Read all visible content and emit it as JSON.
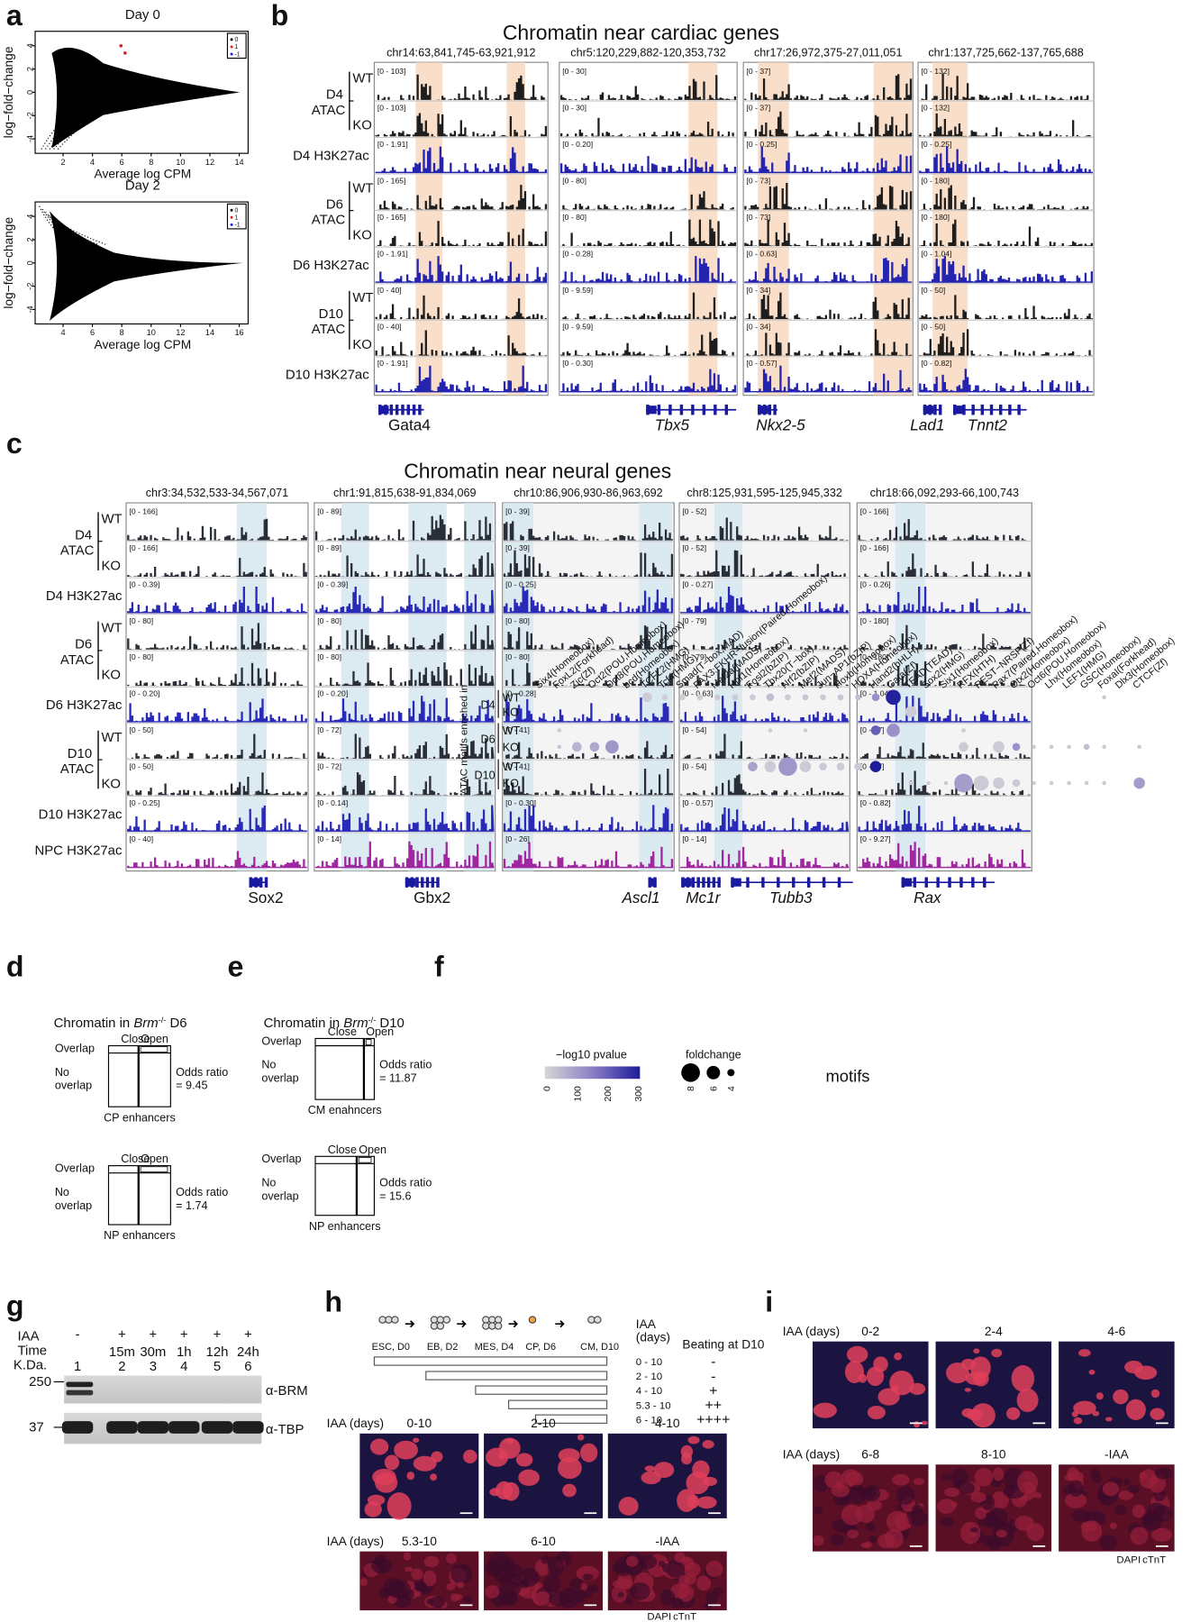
{
  "panel_labels": [
    "a",
    "b",
    "c",
    "d",
    "e",
    "f",
    "g",
    "h",
    "i"
  ],
  "a": {
    "plots": [
      {
        "title": "Day 0",
        "xlabel": "Average log CPM",
        "ylabel": "log−fold−change",
        "xticks": [
          "2",
          "4",
          "6",
          "8",
          "10",
          "12",
          "14"
        ],
        "yticks": [
          "-4",
          "-2",
          "0",
          "2",
          "4"
        ],
        "legend": [
          "0",
          "1",
          "-1"
        ]
      },
      {
        "title": "Day 2",
        "xlabel": "Average log CPM",
        "ylabel": "log−fold−change",
        "xticks": [
          "4",
          "6",
          "8",
          "10",
          "12",
          "14",
          "16"
        ],
        "yticks": [
          "-4",
          "-2",
          "0",
          "2",
          "4"
        ],
        "legend": [
          "0",
          "1",
          "-1"
        ]
      }
    ]
  },
  "b": {
    "title": "Chromatin near cardiac genes",
    "regions": [
      {
        "coord": "chr14:63,841,745-63,921,912",
        "ranges": [
          "[0 - 103]",
          "[0 - 103]",
          "[0 - 1.91]",
          "[0 - 165]",
          "[0 - 165]",
          "[0 - 1.91]",
          "[0 - 40]",
          "[0 - 40]",
          "[0 - 1.91]"
        ]
      },
      {
        "coord": "chr5:120,229,882-120,353,732",
        "ranges": [
          "[0 - 30]",
          "[0 - 30]",
          "[0 - 0.20]",
          "[0 - 80]",
          "[0 - 80]",
          "[0 - 0.28]",
          "[0 - 9.59]",
          "[0 - 9.59]",
          "[0 - 0.30]"
        ]
      },
      {
        "coord": "chr17:26,972,375-27,011,051",
        "ranges": [
          "[0 - 37]",
          "[0 - 37]",
          "[0 - 0.25]",
          "[0 - 73]",
          "[0 - 73]",
          "[0 - 0.63]",
          "[0 - 34]",
          "[0 - 34]",
          "[0 - 0.57]"
        ]
      },
      {
        "coord": "chr1:137,725,662-137,765,688",
        "ranges": [
          "[0 - 132]",
          "[0 - 132]",
          "[0 - 0.25]",
          "[0 - 180]",
          "[0 - 180]",
          "[0 - 1.04]",
          "[0 - 50]",
          "[0 - 50]",
          "[0 - 0.82]"
        ]
      }
    ],
    "rows": [
      {
        "sample": "D4",
        "assay": "ATAC",
        "wt": "WT",
        "ko": "KO",
        "h3": "D4 H3K27ac"
      },
      {
        "sample": "D6",
        "assay": "ATAC",
        "wt": "WT",
        "ko": "KO",
        "h3": "D6 H3K27ac"
      },
      {
        "sample": "D10",
        "assay": "ATAC",
        "wt": "WT",
        "ko": "KO",
        "h3": "D10 H3K27ac"
      }
    ],
    "genes": [
      "Gata4",
      "Tbx5",
      "Nkx2-5",
      "Lad1",
      "Tnnt2"
    ]
  },
  "c": {
    "title": "Chromatin near neural genes",
    "regions": [
      {
        "coord": "chr3:34,532,533-34,567,071",
        "ranges": [
          "[0 - 166]",
          "[0 - 166]",
          "[0 - 0.39]",
          "[0 - 80]",
          "[0 - 80]",
          "[0 - 0.20]",
          "[0 - 50]",
          "[0 - 50]",
          "[0 - 0.25]",
          "[0 - 40]"
        ]
      },
      {
        "coord": "chr1:91,815,638-91,834,069",
        "ranges": [
          "[0 - 89]",
          "[0 - 89]",
          "[0 - 0.39]",
          "[0 - 80]",
          "[0 - 80]",
          "[0 - 0.20]",
          "[0 - 72]",
          "[0 - 72]",
          "[0 - 0.14]",
          "[0 - 14]"
        ]
      },
      {
        "coord": "chr10:86,906,930-86,963,692",
        "ranges": [
          "[0 - 39]",
          "[0 - 39]",
          "[0 - 0.25]",
          "[0 - 80]",
          "[0 - 80]",
          "[0 - 0.28]",
          "[0 - 41]",
          "[0 - 41]",
          "[0 - 0.30]",
          "[0 - 26]"
        ]
      },
      {
        "coord": "chr8:125,931,595-125,945,332",
        "ranges": [
          "[0 - 52]",
          "[0 - 52]",
          "[0 - 0.27]",
          "[0 - 79]",
          "[0 - 79]",
          "[0 - 0.63]",
          "[0 - 54]",
          "[0 - 54]",
          "[0 - 0.57]",
          "[0 - 14]"
        ]
      },
      {
        "coord": "chr18:66,092,293-66,100,743",
        "ranges": [
          "[0 - 166]",
          "[0 - 166]",
          "[0 - 0.26]",
          "[0 - 180]",
          "[0 - 180]",
          "[0 - 1.04]",
          "[0 - 87]",
          "[0 - 87]",
          "[0 - 0.82]",
          "[0 - 9.27]"
        ]
      }
    ],
    "rows": [
      {
        "sample": "D4",
        "assay": "ATAC",
        "wt": "WT",
        "ko": "KO",
        "h3": "D4 H3K27ac"
      },
      {
        "sample": "D6",
        "assay": "ATAC",
        "wt": "WT",
        "ko": "KO",
        "h3": "D6 H3K27ac"
      },
      {
        "sample": "D10",
        "assay": "ATAC",
        "wt": "WT",
        "ko": "KO",
        "h3": "D10 H3K27ac"
      }
    ],
    "npc": "NPC H3K27ac",
    "genes": [
      "Sox2",
      "Gbx2",
      "Ascl1",
      "Mc1r",
      "Tubb3",
      "Rax"
    ]
  },
  "d": {
    "title": [
      "Chromatin in ",
      "Brm",
      "-/-",
      " D6"
    ],
    "charts": [
      {
        "close": "Close",
        "open": "Open",
        "overlap": "Overlap",
        "no_overlap": [
          "No",
          "overlap"
        ],
        "odds_label": "Odds ratio",
        "odds_value": "= 9.45",
        "set": "CP enhancers"
      },
      {
        "close": "Close",
        "open": "Open",
        "overlap": "Overlap",
        "no_overlap": [
          "No",
          "overlap"
        ],
        "odds_label": "Odds ratio",
        "odds_value": "= 1.74",
        "set": "NP enhancers"
      }
    ]
  },
  "e": {
    "title": [
      "Chromatin in ",
      "Brm",
      "-/-",
      " D10"
    ],
    "charts": [
      {
        "close": "Close",
        "open": "Open",
        "overlap": "Overlap",
        "no_overlap": [
          "No",
          "overlap"
        ],
        "odds_label": "Odds ratio",
        "odds_value": "= 11.87",
        "set": "CM enahncers"
      },
      {
        "close": "Close",
        "open": "Open",
        "overlap": "Overlap",
        "no_overlap": [
          "No",
          "overlap"
        ],
        "odds_label": "Odds ratio",
        "odds_value": "= 15.6",
        "set": "NP enhancers"
      }
    ]
  },
  "f": {
    "ylabel": "ATAC motifs enriched in",
    "rows": [
      {
        "day": "D4",
        "wt": "WT",
        "ko": "KO"
      },
      {
        "day": "D6",
        "wt": "WT",
        "ko": "KO"
      },
      {
        "day": "D10",
        "wt": "WT",
        "ko": "KO"
      }
    ],
    "motifs": [
      "Six4(Homeobox)",
      "FoxL2(Forkhead)",
      "Zic(Zf)",
      "Oct2(POU,Homeobox)",
      "Oct8(POU,Homeobox)",
      "bcd(Homeobox)",
      "TCFL2(HMG)",
      "Tcf4(HMG)",
      "Smad(T−box,MAD)",
      "PAX3:FKHR−fusion(Paired,Homeobox)",
      "Mef2a(MADS)",
      "Hnf1(Homeobox)",
      "Fosl2(bZIP)",
      "Tbx20(T−box)",
      "Nrf2(bZIP)",
      "Mef2(MADS)",
      "Jun−AP1(bZIP)",
      "Hoxb(Homeobox)",
      "HOXA(Homeobox)",
      "Hand2(bHLH)",
      "Gata(Zf)",
      "TEAD(TEAD)",
      "Sox2(HMG)",
      "Six1(Homeobox)",
      "RFX(HTH)",
      "REST−NRSF(Zf)",
      "Pax7(Paired,Homeobox)",
      "Otx2(Homeobox)",
      "Oct6(POU,Homeobox)",
      "Lhx(Homeobox)",
      "LEF1(HMG)",
      "GSC(Homeobox)",
      "FoxaI(Forkhead)",
      "Dlx3(Homeobox)",
      "CTCF(Zf)"
    ],
    "dots": [
      {
        "row": 0,
        "motif": 6,
        "pvalue": 20,
        "foldchange": 5.5
      },
      {
        "row": 0,
        "motif": 7,
        "pvalue": 15,
        "foldchange": 4.5
      },
      {
        "row": 0,
        "motif": 8,
        "pvalue": 15,
        "foldchange": 4.5
      },
      {
        "row": 0,
        "motif": 9,
        "pvalue": 15,
        "foldchange": 4.5
      },
      {
        "row": 0,
        "motif": 10,
        "pvalue": 20,
        "foldchange": 4.5
      },
      {
        "row": 0,
        "motif": 11,
        "pvalue": 20,
        "foldchange": 4.5
      },
      {
        "row": 0,
        "motif": 12,
        "pvalue": 20,
        "foldchange": 4.5
      },
      {
        "row": 0,
        "motif": 13,
        "pvalue": 40,
        "foldchange": 5
      },
      {
        "row": 0,
        "motif": 14,
        "pvalue": 20,
        "foldchange": 4.5
      },
      {
        "row": 0,
        "motif": 15,
        "pvalue": 30,
        "foldchange": 4.5
      },
      {
        "row": 0,
        "motif": 16,
        "pvalue": 20,
        "foldchange": 4.5
      },
      {
        "row": 0,
        "motif": 17,
        "pvalue": 30,
        "foldchange": 4.5
      },
      {
        "row": 0,
        "motif": 18,
        "pvalue": 40,
        "foldchange": 4.5
      },
      {
        "row": 0,
        "motif": 19,
        "pvalue": 120,
        "foldchange": 5
      },
      {
        "row": 0,
        "motif": 20,
        "pvalue": 290,
        "foldchange": 7
      },
      {
        "row": 0,
        "motif": 32,
        "pvalue": 20,
        "foldchange": 4
      },
      {
        "row": 1,
        "motif": 21,
        "pvalue": 20,
        "foldchange": 6
      },
      {
        "row": 2,
        "motif": 1,
        "pvalue": 20,
        "foldchange": 4
      },
      {
        "row": 2,
        "motif": 13,
        "pvalue": 20,
        "foldchange": 4
      },
      {
        "row": 2,
        "motif": 15,
        "pvalue": 20,
        "foldchange": 4
      },
      {
        "row": 2,
        "motif": 19,
        "pvalue": 200,
        "foldchange": 5.5
      },
      {
        "row": 2,
        "motif": 20,
        "pvalue": 120,
        "foldchange": 6.5
      },
      {
        "row": 2,
        "motif": 24,
        "pvalue": 20,
        "foldchange": 4
      },
      {
        "row": 3,
        "motif": 1,
        "pvalue": 30,
        "foldchange": 4
      },
      {
        "row": 3,
        "motif": 2,
        "pvalue": 60,
        "foldchange": 5.5
      },
      {
        "row": 3,
        "motif": 3,
        "pvalue": 80,
        "foldchange": 5.5
      },
      {
        "row": 3,
        "motif": 4,
        "pvalue": 110,
        "foldchange": 6.5
      },
      {
        "row": 3,
        "motif": 24,
        "pvalue": 20,
        "foldchange": 5.5
      },
      {
        "row": 3,
        "motif": 26,
        "pvalue": 20,
        "foldchange": 6
      },
      {
        "row": 3,
        "motif": 27,
        "pvalue": 120,
        "foldchange": 5
      },
      {
        "row": 3,
        "motif": 28,
        "pvalue": 20,
        "foldchange": 4
      },
      {
        "row": 3,
        "motif": 29,
        "pvalue": 20,
        "foldchange": 4
      },
      {
        "row": 3,
        "motif": 30,
        "pvalue": 20,
        "foldchange": 4
      },
      {
        "row": 3,
        "motif": 31,
        "pvalue": 40,
        "foldchange": 4.5
      },
      {
        "row": 3,
        "motif": 32,
        "pvalue": 20,
        "foldchange": 4
      },
      {
        "row": 3,
        "motif": 34,
        "pvalue": 20,
        "foldchange": 4
      },
      {
        "row": 4,
        "motif": 12,
        "pvalue": 90,
        "foldchange": 5.5
      },
      {
        "row": 4,
        "motif": 13,
        "pvalue": 20,
        "foldchange": 6
      },
      {
        "row": 4,
        "motif": 14,
        "pvalue": 110,
        "foldchange": 8
      },
      {
        "row": 4,
        "motif": 15,
        "pvalue": 20,
        "foldchange": 6
      },
      {
        "row": 4,
        "motif": 16,
        "pvalue": 20,
        "foldchange": 5
      },
      {
        "row": 4,
        "motif": 17,
        "pvalue": 20,
        "foldchange": 5
      },
      {
        "row": 4,
        "motif": 18,
        "pvalue": 20,
        "foldchange": 5
      },
      {
        "row": 4,
        "motif": 19,
        "pvalue": 300,
        "foldchange": 6
      },
      {
        "row": 5,
        "motif": 21,
        "pvalue": 20,
        "foldchange": 4
      },
      {
        "row": 5,
        "motif": 22,
        "pvalue": 20,
        "foldchange": 4
      },
      {
        "row": 5,
        "motif": 23,
        "pvalue": 20,
        "foldchange": 4
      },
      {
        "row": 5,
        "motif": 24,
        "pvalue": 100,
        "foldchange": 8
      },
      {
        "row": 5,
        "motif": 25,
        "pvalue": 20,
        "foldchange": 7
      },
      {
        "row": 5,
        "motif": 26,
        "pvalue": 20,
        "foldchange": 6
      },
      {
        "row": 5,
        "motif": 27,
        "pvalue": 20,
        "foldchange": 5
      },
      {
        "row": 5,
        "motif": 28,
        "pvalue": 20,
        "foldchange": 4
      },
      {
        "row": 5,
        "motif": 29,
        "pvalue": 20,
        "foldchange": 4
      },
      {
        "row": 5,
        "motif": 30,
        "pvalue": 20,
        "foldchange": 4
      },
      {
        "row": 5,
        "motif": 31,
        "pvalue": 20,
        "foldchange": 4
      },
      {
        "row": 5,
        "motif": 32,
        "pvalue": 20,
        "foldchange": 4
      },
      {
        "row": 5,
        "motif": 34,
        "pvalue": 100,
        "foldchange": 6
      }
    ],
    "pvalue_legend": {
      "title": "−log10 pvalue",
      "ticks": [
        "0",
        "100",
        "200",
        "300"
      ]
    },
    "size_legend": {
      "title": "foldchange",
      "ticks": [
        "8",
        "6",
        "4"
      ]
    },
    "xlabel": "motifs"
  },
  "g": {
    "iaa_label": "IAA",
    "iaa": [
      "-",
      "+",
      "+",
      "+",
      "+",
      "+"
    ],
    "time_label": "Time",
    "times": [
      "15m",
      "30m",
      "1h",
      "12h",
      "24h"
    ],
    "kda": "K.Da.",
    "lanes": [
      "1",
      "2",
      "3",
      "4",
      "5",
      "6"
    ],
    "blots": [
      {
        "size": "250",
        "antibody": "α-BRM"
      },
      {
        "size": "37",
        "antibody": "α-TBP"
      }
    ]
  },
  "h": {
    "stages": [
      "ESC, D0",
      "EB, D2",
      "MES, D4",
      "CP, D6",
      "CM, D10"
    ],
    "iaa_header": [
      "IAA",
      "(days)"
    ],
    "beating_header": "Beating at D10",
    "treatments": [
      {
        "days": "0 - 10",
        "beating": "-"
      },
      {
        "days": "2 - 10",
        "beating": "-"
      },
      {
        "days": "4 - 10",
        "beating": "+"
      },
      {
        "days": "5.3 - 10",
        "beating": "++"
      },
      {
        "days": "6 - 10",
        "beating": "++++"
      }
    ],
    "image_rows": [
      {
        "label": "IAA (days)",
        "images": [
          "0-10",
          "2-10",
          "4-10"
        ]
      },
      {
        "label": "IAA (days)",
        "images": [
          "5.3-10",
          "6-10",
          "-IAA"
        ]
      }
    ],
    "stain": [
      "DAPI",
      "cTnT"
    ]
  },
  "i": {
    "image_rows": [
      {
        "label": "IAA (days)",
        "images": [
          "0-2",
          "2-4",
          "4-6"
        ]
      },
      {
        "label": "IAA (days)",
        "images": [
          "6-8",
          "8-10",
          "-IAA"
        ]
      }
    ],
    "stain": [
      "DAPI",
      "cTnT"
    ]
  }
}
